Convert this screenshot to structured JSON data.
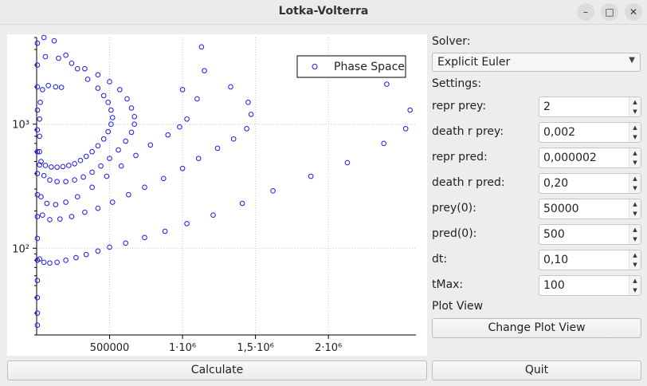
{
  "window": {
    "title": "Lotka-Volterra",
    "minimize_glyph": "–",
    "maximize_glyph": "□",
    "close_glyph": "✕"
  },
  "panel": {
    "solver_label": "Solver:",
    "solver_value": "Explicit Euler",
    "settings_label": "Settings:",
    "params": [
      {
        "label": "repr prey:",
        "value": "2"
      },
      {
        "label": "death r prey:",
        "value": "0,002"
      },
      {
        "label": "repr pred:",
        "value": "0,000002"
      },
      {
        "label": "death r pred:",
        "value": "0,20"
      },
      {
        "label": "prey(0):",
        "value": "50000"
      },
      {
        "label": "pred(0):",
        "value": "500"
      },
      {
        "label": "dt:",
        "value": "0,10"
      },
      {
        "label": "tMax:",
        "value": "100"
      }
    ],
    "plot_view_label": "Plot View",
    "change_plot_button": "Change Plot View",
    "quit_button": "Quit",
    "calculate_button": "Calculate"
  },
  "chart_data": {
    "type": "scatter",
    "marker_color": "#1a1ae6",
    "y_scale": "log",
    "xlim": [
      0,
      2600000
    ],
    "ylim": [
      20,
      5000
    ],
    "grid": true,
    "legend_position": "top-right",
    "legend": [
      "Phase Space"
    ],
    "x_ticks": [
      {
        "value": 500000,
        "label": "500000"
      },
      {
        "value": 1000000,
        "label": "1·10⁶"
      },
      {
        "value": 1500000,
        "label": "1,5·10⁶"
      },
      {
        "value": 2000000,
        "label": "2·10⁶"
      }
    ],
    "y_ticks": [
      {
        "value": 100,
        "label": "10²"
      },
      {
        "value": 1000,
        "label": "10³"
      }
    ],
    "series": [
      {
        "name": "Phase Space",
        "points": [
          [
            50000,
            5000
          ],
          [
            120000,
            4700
          ],
          [
            200000,
            3600
          ],
          [
            280000,
            2800
          ],
          [
            350000,
            2300
          ],
          [
            420000,
            1950
          ],
          [
            460000,
            1700
          ],
          [
            490000,
            1500
          ],
          [
            510000,
            1300
          ],
          [
            520000,
            1130
          ],
          [
            510000,
            1000
          ],
          [
            490000,
            870
          ],
          [
            460000,
            760
          ],
          [
            420000,
            670
          ],
          [
            380000,
            600
          ],
          [
            340000,
            550
          ],
          [
            300000,
            510
          ],
          [
            260000,
            480
          ],
          [
            220000,
            465
          ],
          [
            180000,
            455
          ],
          [
            140000,
            450
          ],
          [
            100000,
            452
          ],
          [
            60000,
            465
          ],
          [
            30000,
            500
          ],
          [
            20000,
            600
          ],
          [
            20000,
            800
          ],
          [
            20000,
            1100
          ],
          [
            25000,
            1500
          ],
          [
            40000,
            1900
          ],
          [
            80000,
            2050
          ],
          [
            130000,
            2000
          ],
          [
            170000,
            1980
          ],
          [
            60000,
            3500
          ],
          [
            150000,
            3400
          ],
          [
            240000,
            3100
          ],
          [
            330000,
            2800
          ],
          [
            420000,
            2500
          ],
          [
            500000,
            2200
          ],
          [
            570000,
            1900
          ],
          [
            620000,
            1600
          ],
          [
            650000,
            1350
          ],
          [
            670000,
            1150
          ],
          [
            670000,
            1000
          ],
          [
            650000,
            860
          ],
          [
            610000,
            730
          ],
          [
            560000,
            620
          ],
          [
            500000,
            530
          ],
          [
            440000,
            460
          ],
          [
            380000,
            410
          ],
          [
            320000,
            375
          ],
          [
            260000,
            355
          ],
          [
            200000,
            345
          ],
          [
            140000,
            345
          ],
          [
            90000,
            355
          ],
          [
            50000,
            385
          ],
          [
            20000,
            470
          ],
          [
            1000000,
            1900
          ],
          [
            1100000,
            1600
          ],
          [
            1030000,
            1100
          ],
          [
            980000,
            950
          ],
          [
            900000,
            820
          ],
          [
            780000,
            680
          ],
          [
            680000,
            560
          ],
          [
            580000,
            460
          ],
          [
            480000,
            380
          ],
          [
            380000,
            310
          ],
          [
            280000,
            260
          ],
          [
            200000,
            235
          ],
          [
            130000,
            225
          ],
          [
            70000,
            230
          ],
          [
            30000,
            260
          ],
          [
            1130000,
            4200
          ],
          [
            1150000,
            2700
          ],
          [
            1330000,
            2000
          ],
          [
            1450000,
            1500
          ],
          [
            1470000,
            1200
          ],
          [
            1440000,
            920
          ],
          [
            1350000,
            760
          ],
          [
            1240000,
            640
          ],
          [
            1110000,
            530
          ],
          [
            1000000,
            440
          ],
          [
            870000,
            365
          ],
          [
            740000,
            310
          ],
          [
            630000,
            270
          ],
          [
            520000,
            235
          ],
          [
            420000,
            210
          ],
          [
            330000,
            195
          ],
          [
            240000,
            180
          ],
          [
            160000,
            172
          ],
          [
            90000,
            170
          ],
          [
            40000,
            185
          ],
          [
            2400000,
            2100
          ],
          [
            2560000,
            1300
          ],
          [
            2530000,
            920
          ],
          [
            2380000,
            700
          ],
          [
            2130000,
            490
          ],
          [
            1880000,
            380
          ],
          [
            1620000,
            290
          ],
          [
            1410000,
            230
          ],
          [
            1210000,
            185
          ],
          [
            1030000,
            158
          ],
          [
            880000,
            137
          ],
          [
            740000,
            122
          ],
          [
            610000,
            110
          ],
          [
            500000,
            102
          ],
          [
            420000,
            95
          ],
          [
            340000,
            89
          ],
          [
            270000,
            84
          ],
          [
            200000,
            80
          ],
          [
            140000,
            77
          ],
          [
            90000,
            76
          ],
          [
            50000,
            77
          ],
          [
            20000,
            82
          ],
          [
            5000,
            4500
          ],
          [
            5000,
            3000
          ],
          [
            5000,
            2000
          ],
          [
            5000,
            1300
          ],
          [
            5000,
            900
          ],
          [
            5000,
            600
          ],
          [
            5000,
            400
          ],
          [
            5000,
            270
          ],
          [
            5000,
            180
          ],
          [
            5000,
            120
          ],
          [
            5000,
            80
          ],
          [
            5000,
            55
          ],
          [
            5000,
            40
          ],
          [
            5000,
            30
          ],
          [
            5000,
            24
          ]
        ]
      }
    ]
  }
}
